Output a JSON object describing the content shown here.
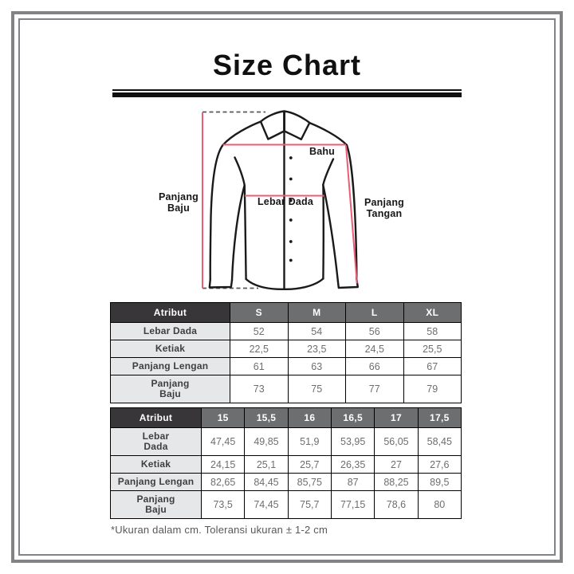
{
  "title": "Size Chart",
  "diagram": {
    "labels": {
      "panjang_baju": "Panjang\nBaju",
      "bahu": "Bahu",
      "lebar_dada": "Lebar Dada",
      "panjang_tangan": "Panjang\nTangan"
    }
  },
  "tables": [
    {
      "columns": [
        "Atribut",
        "S",
        "M",
        "L",
        "XL"
      ],
      "rows": [
        {
          "label": "Lebar Dada",
          "values": [
            "52",
            "54",
            "56",
            "58"
          ]
        },
        {
          "label": "Ketiak",
          "values": [
            "22,5",
            "23,5",
            "24,5",
            "25,5"
          ]
        },
        {
          "label": "Panjang Lengan",
          "values": [
            "61",
            "63",
            "66",
            "67"
          ]
        },
        {
          "label": "Panjang\nBaju",
          "values": [
            "73",
            "75",
            "77",
            "79"
          ]
        }
      ]
    },
    {
      "columns": [
        "Atribut",
        "15",
        "15,5",
        "16",
        "16,5",
        "17",
        "17,5"
      ],
      "rows": [
        {
          "label": "Lebar\nDada",
          "values": [
            "47,45",
            "49,85",
            "51,9",
            "53,95",
            "56,05",
            "58,45"
          ]
        },
        {
          "label": "Ketiak",
          "values": [
            "24,15",
            "25,1",
            "25,7",
            "26,35",
            "27",
            "27,6"
          ]
        },
        {
          "label": "Panjang Lengan",
          "values": [
            "82,65",
            "84,45",
            "85,75",
            "87",
            "88,25",
            "89,5"
          ]
        },
        {
          "label": "Panjang\nBaju",
          "values": [
            "73,5",
            "74,45",
            "75,7",
            "77,15",
            "78,6",
            "80"
          ]
        }
      ]
    }
  ],
  "footnote": "*Ukuran dalam cm. Toleransi ukuran ± 1-2 cm",
  "colors": {
    "measure_line": "#ec5c74",
    "shirt_outline": "#1a1a1a",
    "table_header_dark": "#383638",
    "table_header_gray": "#6d6e70",
    "row_label_bg": "#e6e7e8",
    "row_label_text": "#3f3f41",
    "value_text": "#6d6e70",
    "footnote_text": "#57585a",
    "frame_gray": "#828386"
  }
}
